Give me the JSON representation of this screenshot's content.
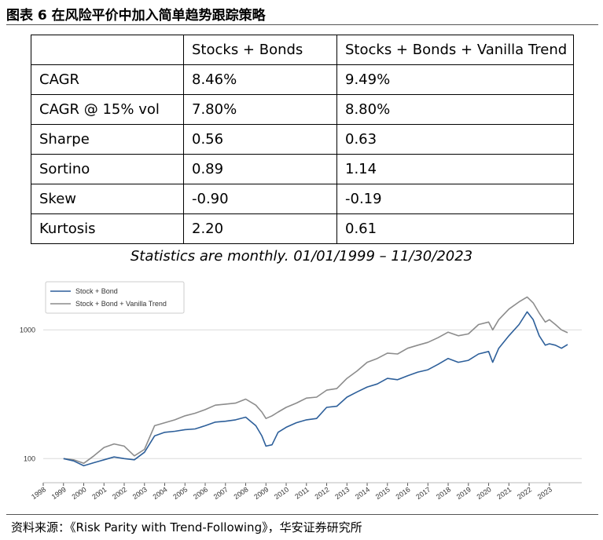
{
  "figure_title": "图表 6  在风险平价中加入简单趋势跟踪策略",
  "table": {
    "headers": [
      "",
      "Stocks + Bonds",
      "Stocks + Bonds + Vanilla Trend"
    ],
    "rows": [
      [
        "CAGR",
        "8.46%",
        "9.49%"
      ],
      [
        "CAGR @ 15% vol",
        "7.80%",
        "8.80%"
      ],
      [
        "Sharpe",
        "0.56",
        "0.63"
      ],
      [
        "Sortino",
        "0.89",
        "1.14"
      ],
      [
        "Skew",
        "-0.90",
        "-0.19"
      ],
      [
        "Kurtosis",
        "2.20",
        "0.61"
      ]
    ]
  },
  "caption": "Statistics are monthly. 01/01/1999 – 11/30/2023",
  "chart_data": {
    "type": "line",
    "yscale": "log",
    "ylim": [
      65,
      2500
    ],
    "xlim": [
      1998.0,
      2024.6
    ],
    "y_ticks": [
      "100",
      "1000"
    ],
    "y_tick_values": [
      100,
      1000
    ],
    "x_ticks": [
      "1998",
      "1999",
      "2000",
      "2001",
      "2002",
      "2003",
      "2004",
      "2005",
      "2006",
      "2007",
      "2008",
      "2009",
      "2010",
      "2011",
      "2012",
      "2013",
      "2014",
      "2015",
      "2016",
      "2017",
      "2018",
      "2019",
      "2020",
      "2021",
      "2022",
      "2023"
    ],
    "series": [
      {
        "name": "Stock + Bond",
        "color": "#2d5f9a",
        "x": [
          1999.0,
          1999.5,
          2000.0,
          2000.5,
          2001.0,
          2001.5,
          2002.0,
          2002.5,
          2003.0,
          2003.5,
          2004.0,
          2004.5,
          2005.0,
          2005.5,
          2006.0,
          2006.5,
          2007.0,
          2007.5,
          2008.0,
          2008.5,
          2008.8,
          2009.0,
          2009.3,
          2009.6,
          2010.0,
          2010.5,
          2011.0,
          2011.5,
          2012.0,
          2012.5,
          2013.0,
          2013.5,
          2014.0,
          2014.5,
          2015.0,
          2015.5,
          2016.0,
          2016.5,
          2017.0,
          2017.5,
          2018.0,
          2018.5,
          2019.0,
          2019.5,
          2020.0,
          2020.2,
          2020.5,
          2021.0,
          2021.5,
          2021.9,
          2022.2,
          2022.5,
          2022.8,
          2023.0,
          2023.3,
          2023.6,
          2023.9
        ],
        "values": [
          100,
          96,
          88,
          93,
          98,
          103,
          100,
          98,
          112,
          150,
          160,
          163,
          168,
          170,
          180,
          192,
          195,
          200,
          210,
          180,
          150,
          125,
          128,
          160,
          175,
          190,
          200,
          205,
          250,
          255,
          300,
          330,
          360,
          380,
          420,
          410,
          440,
          470,
          490,
          540,
          600,
          560,
          580,
          650,
          680,
          560,
          720,
          900,
          1100,
          1380,
          1200,
          900,
          760,
          780,
          760,
          720,
          770
        ]
      },
      {
        "name": "Stock + Bond + Vanilla Trend",
        "color": "#8c8c8c",
        "x": [
          1999.0,
          1999.5,
          2000.0,
          2000.5,
          2001.0,
          2001.5,
          2002.0,
          2002.5,
          2003.0,
          2003.5,
          2004.0,
          2004.5,
          2005.0,
          2005.5,
          2006.0,
          2006.5,
          2007.0,
          2007.5,
          2008.0,
          2008.5,
          2008.8,
          2009.0,
          2009.3,
          2009.6,
          2010.0,
          2010.5,
          2011.0,
          2011.5,
          2012.0,
          2012.5,
          2013.0,
          2013.5,
          2014.0,
          2014.5,
          2015.0,
          2015.5,
          2016.0,
          2016.5,
          2017.0,
          2017.5,
          2018.0,
          2018.5,
          2019.0,
          2019.5,
          2020.0,
          2020.2,
          2020.5,
          2021.0,
          2021.5,
          2021.9,
          2022.2,
          2022.5,
          2022.8,
          2023.0,
          2023.3,
          2023.6,
          2023.9
        ],
        "values": [
          100,
          98,
          92,
          105,
          122,
          130,
          125,
          105,
          118,
          180,
          190,
          200,
          215,
          225,
          240,
          260,
          265,
          270,
          290,
          260,
          230,
          205,
          215,
          230,
          250,
          270,
          295,
          300,
          340,
          350,
          420,
          480,
          560,
          600,
          660,
          650,
          720,
          760,
          800,
          870,
          960,
          900,
          930,
          1100,
          1150,
          1000,
          1200,
          1450,
          1650,
          1800,
          1620,
          1350,
          1150,
          1200,
          1100,
          1000,
          950
        ]
      }
    ],
    "legend": [
      "Stock + Bond",
      "Stock + Bond + Vanilla Trend"
    ],
    "legend_position": "top-left"
  },
  "source": "资料来源：《Risk Parity with Trend-Following》，华安证券研究所"
}
